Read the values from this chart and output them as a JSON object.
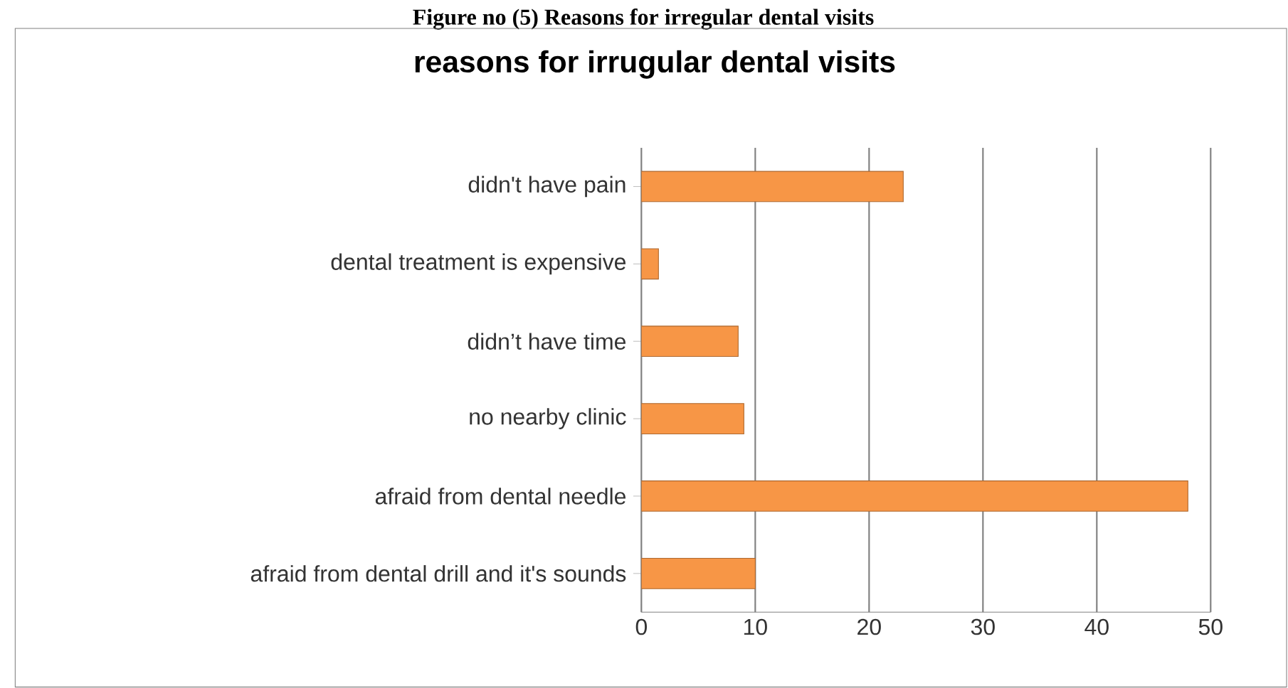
{
  "chart_data": {
    "type": "bar",
    "orientation": "horizontal",
    "title": "reasons for irrugular dental visits",
    "annotations": [
      "Figure no (5) Reasons for irregular dental visits"
    ],
    "categories": [
      "didn't have pain",
      "dental treatment is expensive",
      "didn’t have time",
      "no nearby clinic",
      "afraid from dental needle",
      "afraid from dental drill and it's sounds"
    ],
    "values": [
      23,
      1.5,
      8.5,
      9,
      48,
      10
    ],
    "color": "#f79646",
    "xlim": [
      0,
      50
    ],
    "xticks": [
      0,
      10,
      20,
      30,
      40,
      50
    ],
    "grid": "x"
  }
}
